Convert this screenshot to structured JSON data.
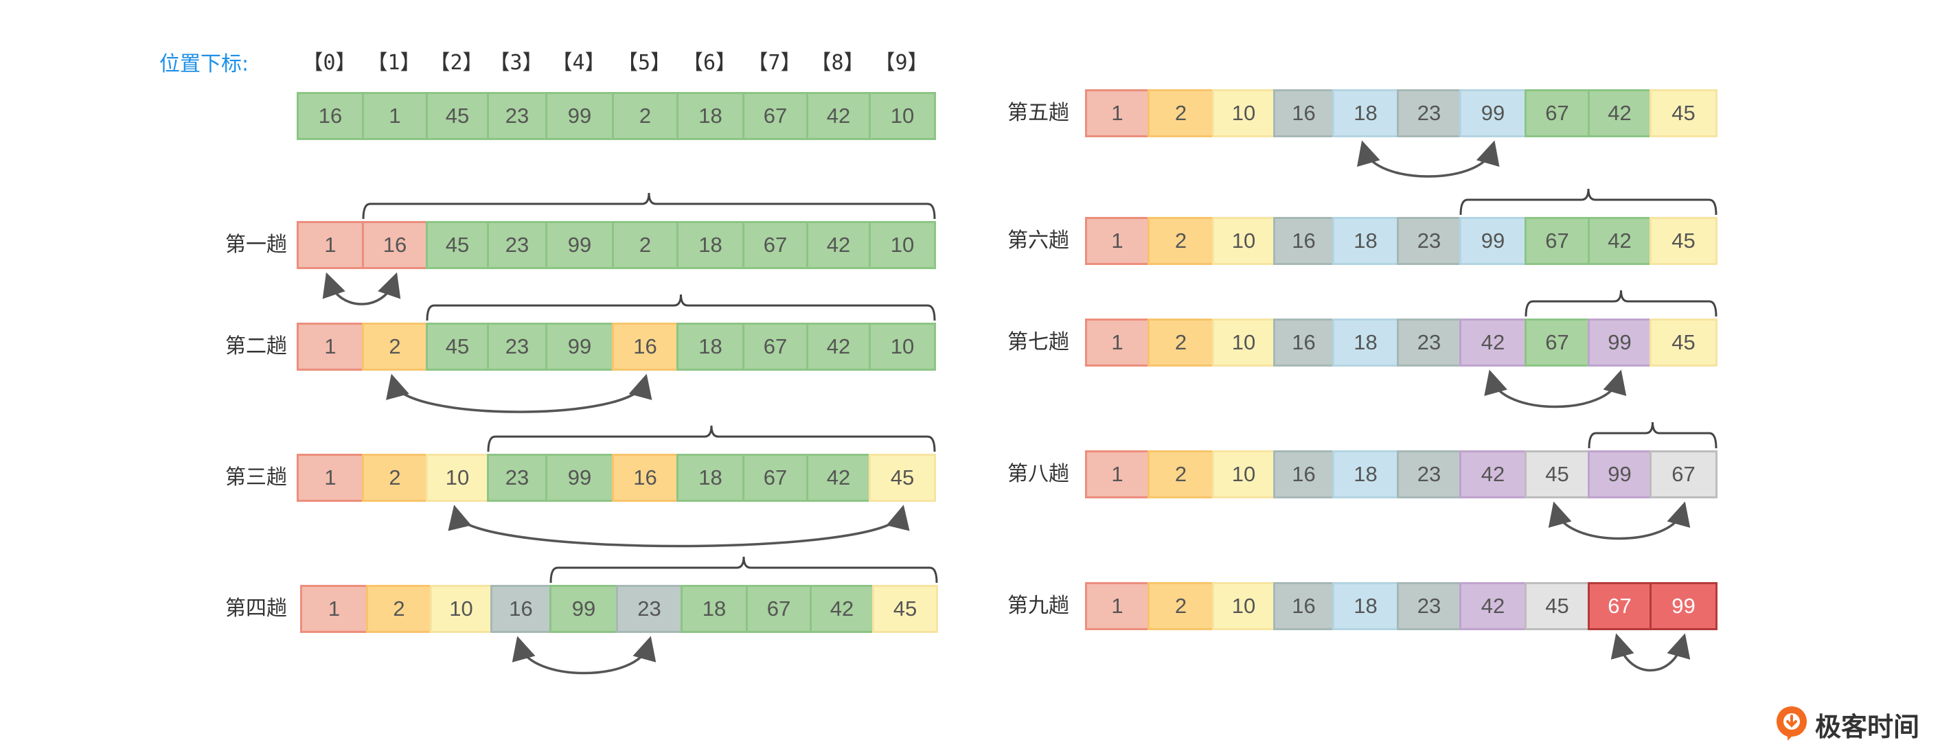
{
  "position_label": "位置下标:",
  "indices": [
    "【0】",
    "【1】",
    "【2】",
    "【3】",
    "【4】",
    "【5】",
    "【6】",
    "【7】",
    "【8】",
    "【9】"
  ],
  "initial": {
    "values": [
      "16",
      "1",
      "45",
      "23",
      "99",
      "2",
      "18",
      "67",
      "42",
      "10"
    ],
    "colors": [
      "green",
      "green",
      "green",
      "green",
      "green",
      "green",
      "green",
      "green",
      "green",
      "green"
    ]
  },
  "passes": [
    {
      "label": "第一趟",
      "values": [
        "1",
        "16",
        "45",
        "23",
        "99",
        "2",
        "18",
        "67",
        "42",
        "10"
      ],
      "colors": [
        "salmon",
        "salmon",
        "green",
        "green",
        "green",
        "green",
        "green",
        "green",
        "green",
        "green"
      ]
    },
    {
      "label": "第二趟",
      "values": [
        "1",
        "2",
        "45",
        "23",
        "99",
        "16",
        "18",
        "67",
        "42",
        "10"
      ],
      "colors": [
        "salmon",
        "orange",
        "green",
        "green",
        "green",
        "orange",
        "green",
        "green",
        "green",
        "green"
      ]
    },
    {
      "label": "第三趟",
      "values": [
        "1",
        "2",
        "10",
        "23",
        "99",
        "16",
        "18",
        "67",
        "42",
        "45"
      ],
      "colors": [
        "salmon",
        "orange",
        "yellow",
        "green",
        "green",
        "orange",
        "green",
        "green",
        "green",
        "yellow"
      ]
    },
    {
      "label": "第四趟",
      "values": [
        "1",
        "2",
        "10",
        "16",
        "99",
        "23",
        "18",
        "67",
        "42",
        "45"
      ],
      "colors": [
        "salmon",
        "orange",
        "yellow",
        "slate",
        "green",
        "slate",
        "green",
        "green",
        "green",
        "yellow"
      ]
    },
    {
      "label": "第五趟",
      "values": [
        "1",
        "2",
        "10",
        "16",
        "18",
        "23",
        "99",
        "67",
        "42",
        "45"
      ],
      "colors": [
        "salmon",
        "orange",
        "yellow",
        "slate",
        "lightblue",
        "slate",
        "lightblue",
        "green",
        "green",
        "yellow"
      ]
    },
    {
      "label": "第六趟",
      "values": [
        "1",
        "2",
        "10",
        "16",
        "18",
        "23",
        "99",
        "67",
        "42",
        "45"
      ],
      "colors": [
        "salmon",
        "orange",
        "yellow",
        "slate",
        "lightblue",
        "slate",
        "lightblue",
        "green",
        "green",
        "yellow"
      ]
    },
    {
      "label": "第七趟",
      "values": [
        "1",
        "2",
        "10",
        "16",
        "18",
        "23",
        "42",
        "67",
        "99",
        "45"
      ],
      "colors": [
        "salmon",
        "orange",
        "yellow",
        "slate",
        "lightblue",
        "slate",
        "purple",
        "green",
        "purple",
        "yellow"
      ]
    },
    {
      "label": "第八趟",
      "values": [
        "1",
        "2",
        "10",
        "16",
        "18",
        "23",
        "42",
        "45",
        "99",
        "67"
      ],
      "colors": [
        "salmon",
        "orange",
        "yellow",
        "slate",
        "lightblue",
        "slate",
        "purple",
        "lightgray",
        "purple",
        "lightgray"
      ]
    },
    {
      "label": "第九趟",
      "values": [
        "1",
        "2",
        "10",
        "16",
        "18",
        "23",
        "42",
        "45",
        "67",
        "99"
      ],
      "colors": [
        "salmon",
        "orange",
        "yellow",
        "slate",
        "lightblue",
        "slate",
        "purple",
        "lightgray",
        "red",
        "red"
      ]
    }
  ],
  "palette": {
    "green": {
      "fill": "#A9D3A0",
      "stroke": "#8CC585",
      "text": "#555555"
    },
    "salmon": {
      "fill": "#F3BDB0",
      "stroke": "#EC8E7C",
      "text": "#555555"
    },
    "orange": {
      "fill": "#FDD68A",
      "stroke": "#F8C46A",
      "text": "#555555"
    },
    "yellow": {
      "fill": "#FDF2B6",
      "stroke": "#F7E4A0",
      "text": "#555555"
    },
    "slate": {
      "fill": "#BDCAC8",
      "stroke": "#A6B8B6",
      "text": "#555555"
    },
    "lightblue": {
      "fill": "#C7E2EE",
      "stroke": "#B3D4E2",
      "text": "#555555"
    },
    "purple": {
      "fill": "#D3BDDC",
      "stroke": "#BFA3CD",
      "text": "#555555"
    },
    "lightgray": {
      "fill": "#E3E3E3",
      "stroke": "#BDBDBD",
      "text": "#555555"
    },
    "red": {
      "fill": "#EB6B6B",
      "stroke": "#B53A3A",
      "text": "#FFFFFF"
    }
  },
  "arrow_color": "#555555",
  "brace_color": "#444444",
  "brand": {
    "name": "极客时间",
    "color": "#F36B21"
  }
}
